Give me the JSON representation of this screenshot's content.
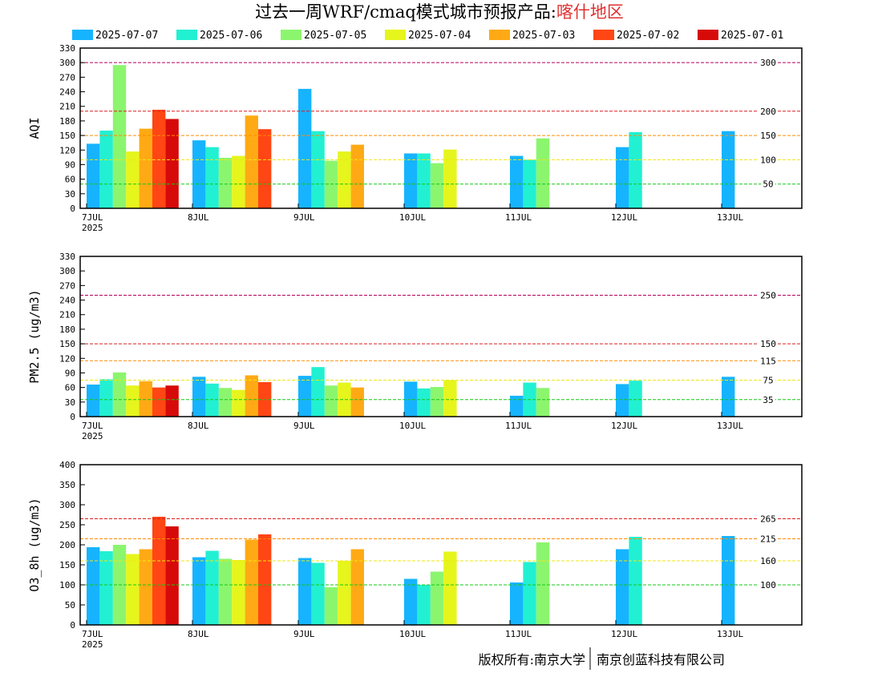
{
  "title": {
    "main": "过去一周WRF/cmaq模式城市预报产品:",
    "location": "喀什地区"
  },
  "footer": {
    "left": "版权所有:南京大学",
    "right": "南京创蓝科技有限公司"
  },
  "series_colors": [
    "#16b4ff",
    "#22f0d2",
    "#8cf56e",
    "#e6f51c",
    "#ffaa14",
    "#ff4614",
    "#d70a0a"
  ],
  "chart_data": [
    {
      "type": "bar",
      "id": "aqi",
      "ylabel": "AQI",
      "ylim": [
        0,
        330
      ],
      "yticks": [
        0,
        30,
        60,
        90,
        120,
        150,
        180,
        210,
        240,
        270,
        300,
        330
      ],
      "categories": [
        "7JUL",
        "8JUL",
        "9JUL",
        "10JUL",
        "11JUL",
        "12JUL",
        "13JUL"
      ],
      "year_label": "2025",
      "series": [
        {
          "name": "2025-07-07",
          "values": [
            133,
            140,
            246,
            113,
            108,
            126,
            159
          ]
        },
        {
          "name": "2025-07-06",
          "values": [
            160,
            126,
            159,
            113,
            100,
            157,
            null
          ]
        },
        {
          "name": "2025-07-05",
          "values": [
            295,
            104,
            98,
            93,
            144,
            null,
            null
          ]
        },
        {
          "name": "2025-07-04",
          "values": [
            117,
            108,
            117,
            121,
            null,
            null,
            null
          ]
        },
        {
          "name": "2025-07-03",
          "values": [
            164,
            191,
            131,
            null,
            null,
            null,
            null
          ]
        },
        {
          "name": "2025-07-02",
          "values": [
            203,
            163,
            null,
            null,
            null,
            null,
            null
          ]
        },
        {
          "name": "2025-07-01",
          "values": [
            184,
            null,
            null,
            null,
            null,
            null,
            null
          ]
        }
      ],
      "thresholds": [
        {
          "value": 300,
          "label": "300",
          "color": "#b4005a"
        },
        {
          "value": 200,
          "label": "200",
          "color": "#dc1e1e"
        },
        {
          "value": 150,
          "label": "150",
          "color": "#ff8c00"
        },
        {
          "value": 100,
          "label": "100",
          "color": "#f0e614"
        },
        {
          "value": 50,
          "label": "50",
          "color": "#14c814"
        }
      ]
    },
    {
      "type": "bar",
      "id": "pm25",
      "ylabel": "PM2.5 (ug/m3)",
      "ylim": [
        0,
        330
      ],
      "yticks": [
        0,
        30,
        60,
        90,
        120,
        150,
        180,
        210,
        240,
        270,
        300,
        330
      ],
      "categories": [
        "7JUL",
        "8JUL",
        "9JUL",
        "10JUL",
        "11JUL",
        "12JUL",
        "13JUL"
      ],
      "year_label": "2025",
      "series": [
        {
          "name": "2025-07-07",
          "values": [
            66,
            82,
            84,
            72,
            43,
            67,
            82
          ]
        },
        {
          "name": "2025-07-06",
          "values": [
            77,
            68,
            102,
            58,
            70,
            74,
            null
          ]
        },
        {
          "name": "2025-07-05",
          "values": [
            91,
            59,
            64,
            61,
            59,
            null,
            null
          ]
        },
        {
          "name": "2025-07-04",
          "values": [
            64,
            55,
            70,
            75,
            null,
            null,
            null
          ]
        },
        {
          "name": "2025-07-03",
          "values": [
            73,
            85,
            60,
            null,
            null,
            null,
            null
          ]
        },
        {
          "name": "2025-07-02",
          "values": [
            60,
            71,
            null,
            null,
            null,
            null,
            null
          ]
        },
        {
          "name": "2025-07-01",
          "values": [
            64,
            null,
            null,
            null,
            null,
            null,
            null
          ]
        }
      ],
      "thresholds": [
        {
          "value": 250,
          "label": "250",
          "color": "#b4005a"
        },
        {
          "value": 150,
          "label": "150",
          "color": "#dc1e1e"
        },
        {
          "value": 115,
          "label": "115",
          "color": "#ff8c00"
        },
        {
          "value": 75,
          "label": "75",
          "color": "#f0e614"
        },
        {
          "value": 35,
          "label": "35",
          "color": "#14c814"
        }
      ]
    },
    {
      "type": "bar",
      "id": "o3",
      "ylabel": "O3_8h (ug/m3)",
      "ylim": [
        0,
        400
      ],
      "yticks": [
        0,
        50,
        100,
        150,
        200,
        250,
        300,
        350,
        400
      ],
      "categories": [
        "7JUL",
        "8JUL",
        "9JUL",
        "10JUL",
        "11JUL",
        "12JUL",
        "13JUL"
      ],
      "year_label": "2025",
      "series": [
        {
          "name": "2025-07-07",
          "values": [
            194,
            169,
            167,
            115,
            106,
            189,
            222
          ]
        },
        {
          "name": "2025-07-06",
          "values": [
            184,
            185,
            155,
            100,
            157,
            220,
            null
          ]
        },
        {
          "name": "2025-07-05",
          "values": [
            200,
            165,
            94,
            133,
            206,
            null,
            null
          ]
        },
        {
          "name": "2025-07-04",
          "values": [
            177,
            162,
            160,
            183,
            null,
            null,
            null
          ]
        },
        {
          "name": "2025-07-03",
          "values": [
            189,
            213,
            189,
            null,
            null,
            null,
            null
          ]
        },
        {
          "name": "2025-07-02",
          "values": [
            270,
            226,
            null,
            null,
            null,
            null,
            null
          ]
        },
        {
          "name": "2025-07-01",
          "values": [
            246,
            null,
            null,
            null,
            null,
            null,
            null
          ]
        }
      ],
      "thresholds": [
        {
          "value": 265,
          "label": "265",
          "color": "#dc1e1e"
        },
        {
          "value": 215,
          "label": "215",
          "color": "#ff8c00"
        },
        {
          "value": 160,
          "label": "160",
          "color": "#f0e614"
        },
        {
          "value": 100,
          "label": "100",
          "color": "#14c814"
        }
      ]
    }
  ]
}
